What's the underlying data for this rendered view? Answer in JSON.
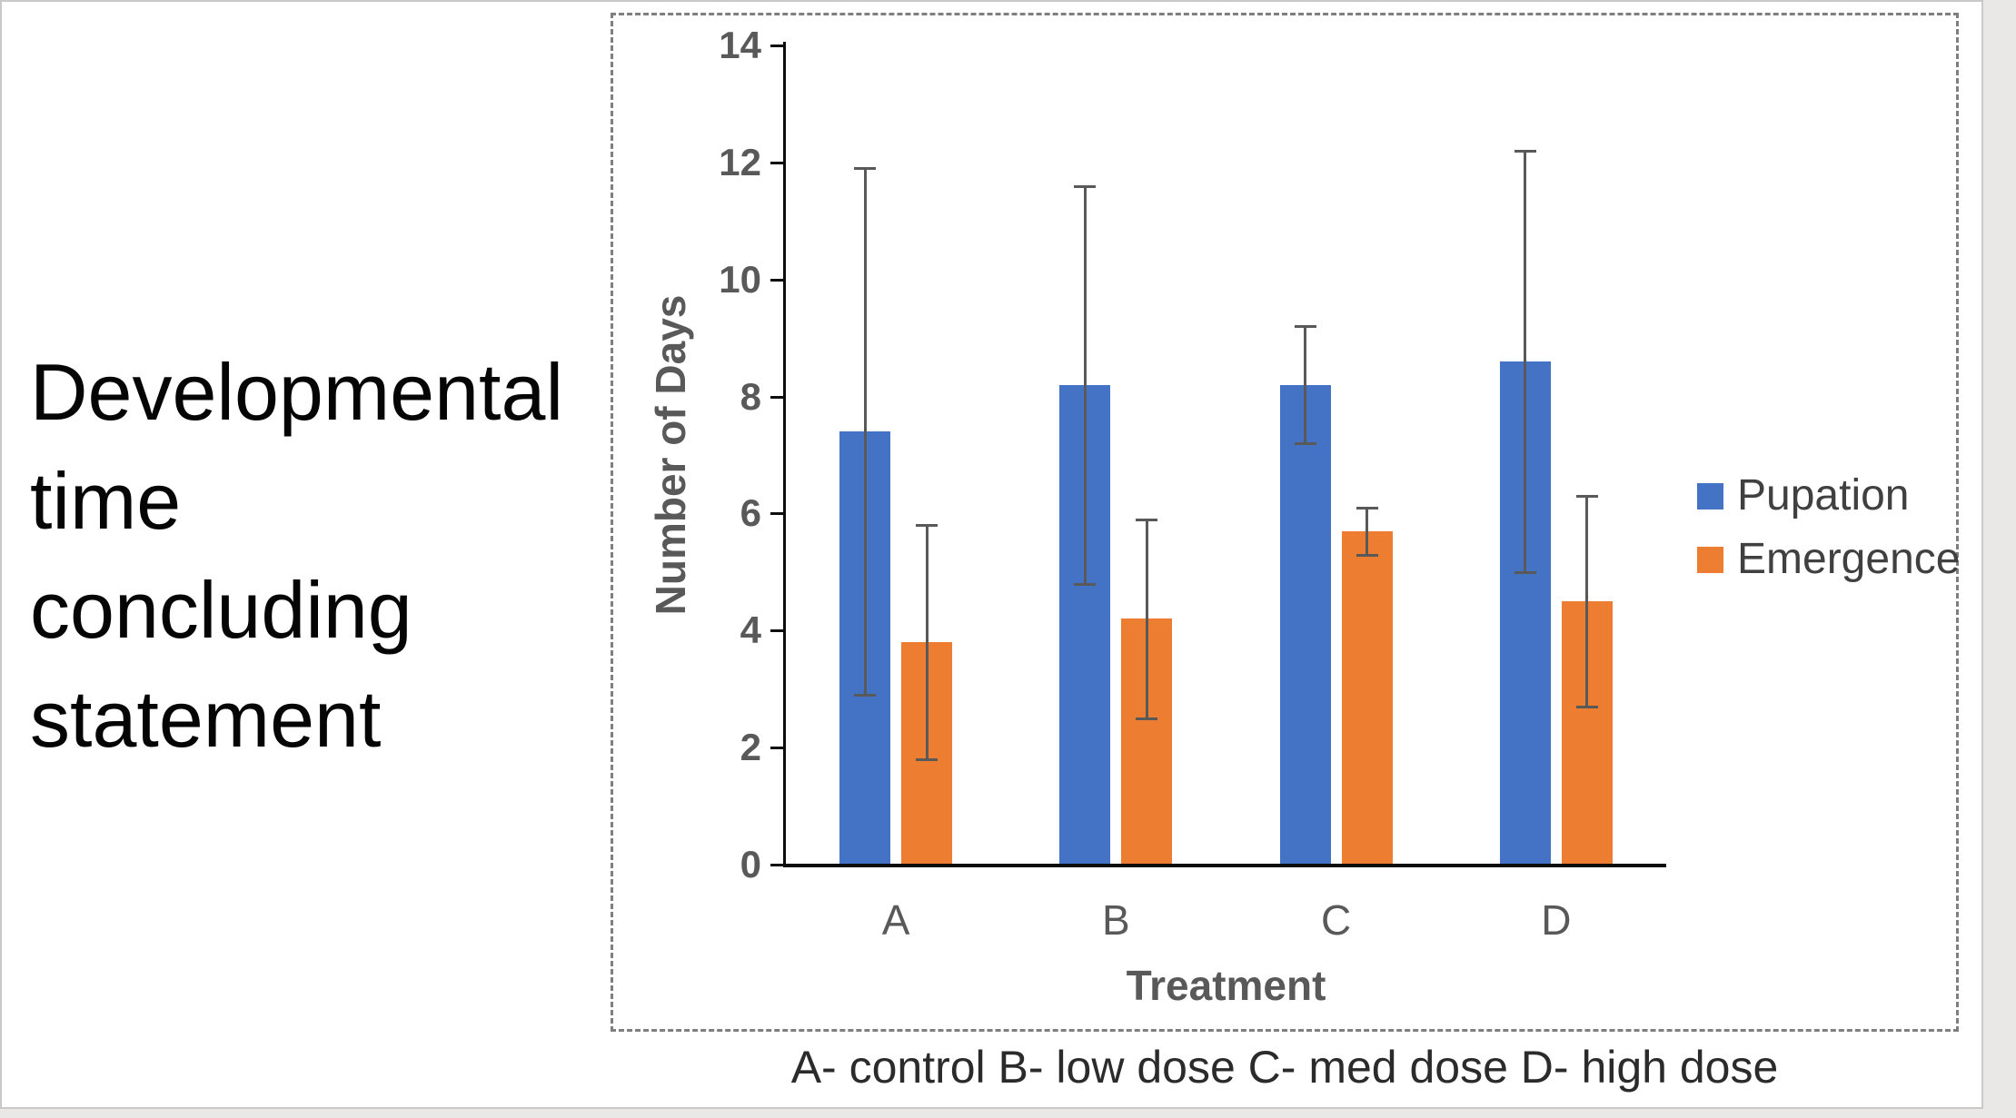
{
  "slide": {
    "title": "Developmental\ntime\nconcluding\nstatement",
    "caption": "A- control  B- low dose  C- med dose D- high dose"
  },
  "chart_data": {
    "type": "bar",
    "title": "",
    "categories": [
      "A",
      "B",
      "C",
      "D"
    ],
    "series": [
      {
        "name": "Pupation",
        "color": "#4472C4",
        "values": [
          7.4,
          8.2,
          8.2,
          8.6
        ],
        "errors": [
          4.5,
          3.4,
          1.0,
          3.6
        ]
      },
      {
        "name": "Emergence",
        "color": "#ED7D31",
        "values": [
          3.8,
          4.2,
          5.7,
          4.5
        ],
        "errors": [
          2.0,
          1.7,
          0.4,
          1.8
        ]
      }
    ],
    "xlabel": "Treatment",
    "ylabel": "Number of Days",
    "ylim": [
      0,
      14
    ],
    "yticks": [
      0,
      2,
      4,
      6,
      8,
      10,
      12,
      14
    ],
    "grid": false,
    "legend_position": "right",
    "error_bar_color": "#595959",
    "axis_text_color": "#595959",
    "axis_line_color": "#0d0d0d"
  }
}
